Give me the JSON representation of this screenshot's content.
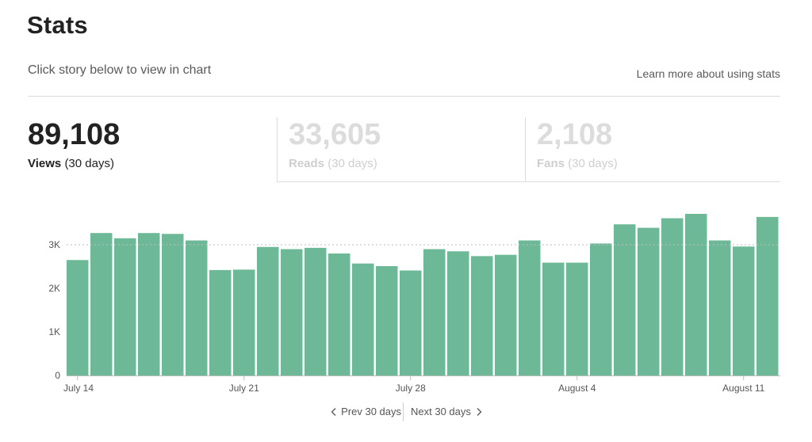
{
  "header": {
    "title": "Stats",
    "subtitle": "Click story below to view in chart",
    "learn_link": "Learn more about using stats"
  },
  "stats": {
    "views": {
      "value": "89,108",
      "label": "Views",
      "period": "(30 days)"
    },
    "reads": {
      "value": "33,605",
      "label": "Reads",
      "period": "(30 days)"
    },
    "fans": {
      "value": "2,108",
      "label": "Fans",
      "period": "(30 days)"
    }
  },
  "pager": {
    "prev_label": "Prev 30 days",
    "next_label": "Next 30 days"
  },
  "colors": {
    "bar": "#6db896",
    "gridline": "#bdbdbd",
    "text_muted": "#5a5a5a"
  },
  "icons": {
    "prev": "chevron-left-icon",
    "next": "chevron-right-icon"
  },
  "chart_data": {
    "type": "bar",
    "title": "",
    "xlabel": "",
    "ylabel": "",
    "ylim": [
      0,
      3800
    ],
    "y_ticks": [
      0,
      1000,
      2000,
      3000
    ],
    "y_tick_labels": [
      "0",
      "1K",
      "2K",
      "3K"
    ],
    "reference_line": 3000,
    "x_tick_labels": [
      {
        "index": 0,
        "label": "July 14"
      },
      {
        "index": 7,
        "label": "July 21"
      },
      {
        "index": 14,
        "label": "July 28"
      },
      {
        "index": 21,
        "label": "August 4"
      },
      {
        "index": 28,
        "label": "August 11"
      }
    ],
    "categories": [
      "Jul 14",
      "Jul 15",
      "Jul 16",
      "Jul 17",
      "Jul 18",
      "Jul 19",
      "Jul 20",
      "Jul 21",
      "Jul 22",
      "Jul 23",
      "Jul 24",
      "Jul 25",
      "Jul 26",
      "Jul 27",
      "Jul 28",
      "Jul 29",
      "Jul 30",
      "Jul 31",
      "Aug 1",
      "Aug 2",
      "Aug 3",
      "Aug 4",
      "Aug 5",
      "Aug 6",
      "Aug 7",
      "Aug 8",
      "Aug 9",
      "Aug 10",
      "Aug 11",
      "Aug 12"
    ],
    "values": [
      2650,
      3270,
      3150,
      3270,
      3250,
      3100,
      2420,
      2430,
      2950,
      2900,
      2930,
      2800,
      2570,
      2510,
      2410,
      2900,
      2850,
      2740,
      2770,
      3100,
      2590,
      2590,
      3030,
      3470,
      3390,
      3610,
      3710,
      3100,
      2960,
      3640
    ]
  }
}
